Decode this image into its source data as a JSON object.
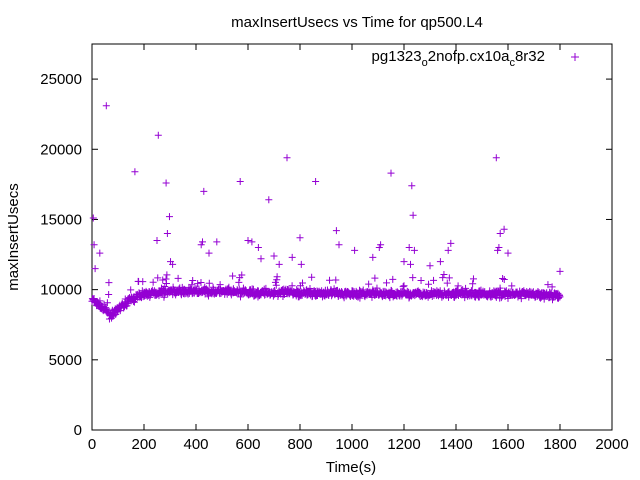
{
  "chart_data": {
    "type": "scatter",
    "title": "maxInsertUsecs vs Time for qp500.L4",
    "xlabel": "Time(s)",
    "ylabel": "maxInsertUsecs",
    "xlim": [
      0,
      2000
    ],
    "ylim": [
      0,
      27500
    ],
    "x_ticks": [
      0,
      200,
      400,
      600,
      800,
      1000,
      1200,
      1400,
      1600,
      1800,
      2000
    ],
    "y_ticks": [
      0,
      5000,
      10000,
      15000,
      20000,
      25000
    ],
    "grid": false,
    "legend_position": "top-right",
    "series": [
      {
        "name": "pg1323",
        "name_sub1": "o",
        "name_mid": "2nofp.cx10a",
        "name_sub2": "c",
        "name_end": "8r32",
        "color": "#9400d3",
        "marker": "plus",
        "baseline": [
          [
            0,
            9300
          ],
          [
            20,
            9000
          ],
          [
            40,
            8700
          ],
          [
            60,
            8400
          ],
          [
            80,
            8100
          ],
          [
            100,
            8600
          ],
          [
            140,
            9200
          ],
          [
            200,
            9700
          ],
          [
            300,
            9900
          ],
          [
            600,
            9800
          ],
          [
            1200,
            9700
          ],
          [
            1600,
            9700
          ],
          [
            1800,
            9600
          ]
        ],
        "outliers": [
          [
            5,
            15100
          ],
          [
            8,
            13200
          ],
          [
            12,
            11500
          ],
          [
            30,
            12600
          ],
          [
            55,
            23100
          ],
          [
            65,
            10500
          ],
          [
            165,
            18400
          ],
          [
            250,
            13500
          ],
          [
            255,
            21000
          ],
          [
            285,
            17600
          ],
          [
            290,
            14000
          ],
          [
            298,
            15200
          ],
          [
            302,
            12000
          ],
          [
            310,
            11800
          ],
          [
            420,
            13200
          ],
          [
            425,
            13400
          ],
          [
            430,
            17000
          ],
          [
            450,
            12600
          ],
          [
            480,
            13400
          ],
          [
            570,
            17700
          ],
          [
            600,
            13500
          ],
          [
            615,
            13400
          ],
          [
            640,
            13000
          ],
          [
            650,
            12200
          ],
          [
            680,
            16400
          ],
          [
            700,
            12400
          ],
          [
            720,
            11800
          ],
          [
            750,
            19400
          ],
          [
            770,
            12300
          ],
          [
            800,
            13700
          ],
          [
            805,
            11800
          ],
          [
            860,
            17700
          ],
          [
            940,
            14200
          ],
          [
            950,
            13200
          ],
          [
            1010,
            12800
          ],
          [
            1080,
            12300
          ],
          [
            1105,
            13000
          ],
          [
            1110,
            13200
          ],
          [
            1150,
            18300
          ],
          [
            1200,
            12000
          ],
          [
            1220,
            13000
          ],
          [
            1225,
            11800
          ],
          [
            1230,
            17400
          ],
          [
            1235,
            15300
          ],
          [
            1240,
            12800
          ],
          [
            1300,
            11700
          ],
          [
            1340,
            12000
          ],
          [
            1370,
            12800
          ],
          [
            1380,
            13300
          ],
          [
            1555,
            19400
          ],
          [
            1560,
            12800
          ],
          [
            1565,
            13000
          ],
          [
            1570,
            14000
          ],
          [
            1585,
            14300
          ],
          [
            1600,
            12600
          ],
          [
            1800,
            11300
          ]
        ]
      }
    ]
  }
}
